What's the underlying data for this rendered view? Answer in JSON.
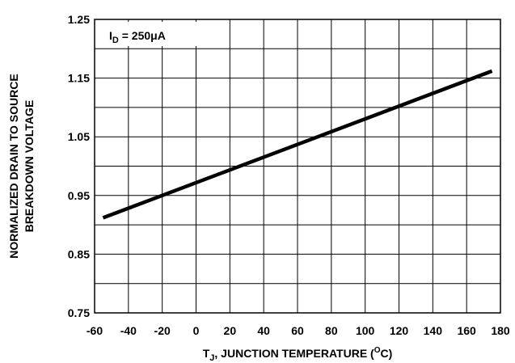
{
  "chart_data": {
    "type": "line",
    "xlabel": {
      "pre": "T",
      "sub": "J",
      "main": ", JUNCTION TEMPERATURE (",
      "sup": "O",
      "post": "C)"
    },
    "ylabel_lines": [
      "NORMALIZED DRAIN TO SOURCE",
      "BREAKDOWN VOLTAGE"
    ],
    "annotation": {
      "pre": "I",
      "sub": "D",
      "post": " = 250μA"
    },
    "xlim": [
      -60,
      180
    ],
    "ylim": [
      0.75,
      1.25
    ],
    "x_ticks": [
      -60,
      -40,
      -20,
      0,
      20,
      40,
      60,
      80,
      100,
      120,
      140,
      160,
      180
    ],
    "y_ticks": [
      "0.75",
      "0.85",
      "0.95",
      "1.05",
      "1.15",
      "1.25"
    ],
    "y_grid_step": 0.05,
    "grid": true,
    "series": [
      {
        "x": [
          -55,
          175
        ],
        "y": [
          0.912,
          1.162
        ],
        "color": "#000000"
      }
    ]
  }
}
